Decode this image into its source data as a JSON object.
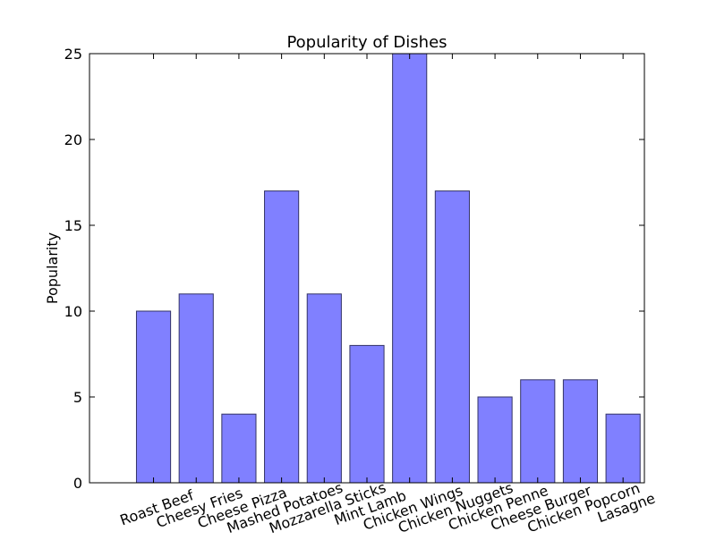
{
  "chart_data": {
    "type": "bar",
    "title": "Popularity of Dishes",
    "xlabel": "",
    "ylabel": "Popularity",
    "categories": [
      "Roast Beef",
      "Cheesy Fries",
      "Cheese Pizza",
      "Mashed Potatoes",
      "Mozzarella Sticks",
      "Mint Lamb",
      "Chicken Wings",
      "Chicken Nuggets",
      "Chicken Penne",
      "Cheese Burger",
      "Chicken Popcorn",
      "Lasagne"
    ],
    "values": [
      10,
      11,
      4,
      17,
      11,
      8,
      25,
      17,
      5,
      6,
      6,
      4
    ],
    "ylim": [
      0,
      25
    ],
    "yticks": [
      0,
      5,
      10,
      15,
      20,
      25
    ],
    "grid": false,
    "legend": null,
    "bar_color": "#8080ff",
    "bar_edge_color": "#333366"
  }
}
